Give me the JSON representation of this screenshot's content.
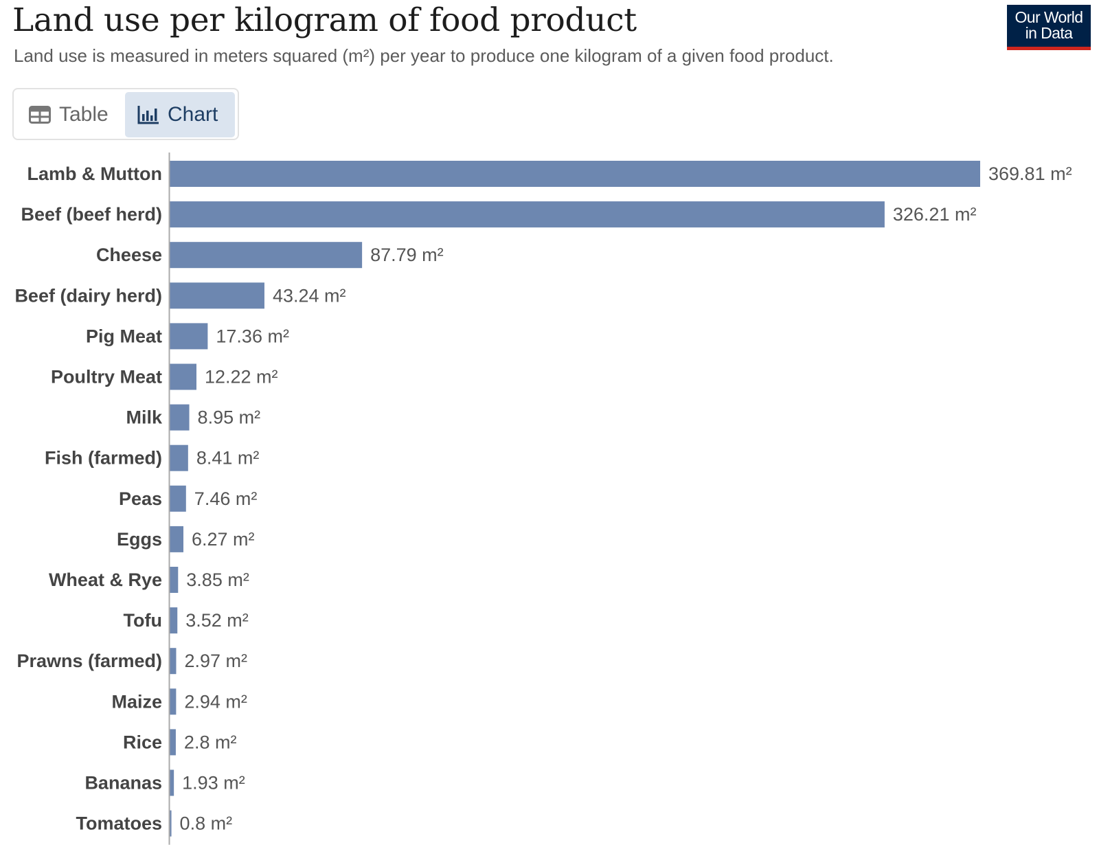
{
  "header": {
    "title": "Land use per kilogram of food product",
    "subtitle": "Land use is measured in meters squared (m²) per year to produce one kilogram of a given food product."
  },
  "logo": {
    "line1": "Our World",
    "line2": "in Data"
  },
  "tabs": [
    {
      "label": "Table",
      "icon": "table-icon",
      "active": false
    },
    {
      "label": "Chart",
      "icon": "bar-chart-icon",
      "active": true
    }
  ],
  "colors": {
    "bar": "#6d87b0",
    "axis": "#aaaaaa",
    "active_tab_bg": "#dbe4ef",
    "logo_bg": "#002147",
    "logo_underline": "#ce261e"
  },
  "chart_data": {
    "type": "bar",
    "orientation": "horizontal",
    "unit": "m²",
    "categories": [
      "Lamb & Mutton",
      "Beef (beef herd)",
      "Cheese",
      "Beef (dairy herd)",
      "Pig Meat",
      "Poultry Meat",
      "Milk",
      "Fish (farmed)",
      "Peas",
      "Eggs",
      "Wheat & Rye",
      "Tofu",
      "Prawns (farmed)",
      "Maize",
      "Rice",
      "Bananas",
      "Tomatoes"
    ],
    "values": [
      369.81,
      326.21,
      87.79,
      43.24,
      17.36,
      12.22,
      8.95,
      8.41,
      7.46,
      6.27,
      3.85,
      3.52,
      2.97,
      2.94,
      2.8,
      1.93,
      0.8
    ],
    "value_labels": [
      "369.81 m²",
      "326.21 m²",
      "87.79 m²",
      "43.24 m²",
      "17.36 m²",
      "12.22 m²",
      "8.95 m²",
      "8.41 m²",
      "7.46 m²",
      "6.27 m²",
      "3.85 m²",
      "3.52 m²",
      "2.97 m²",
      "2.94 m²",
      "2.8 m²",
      "1.93 m²",
      "0.8 m²"
    ],
    "xlim": [
      0,
      369.81
    ],
    "grid": false,
    "legend": "none"
  }
}
